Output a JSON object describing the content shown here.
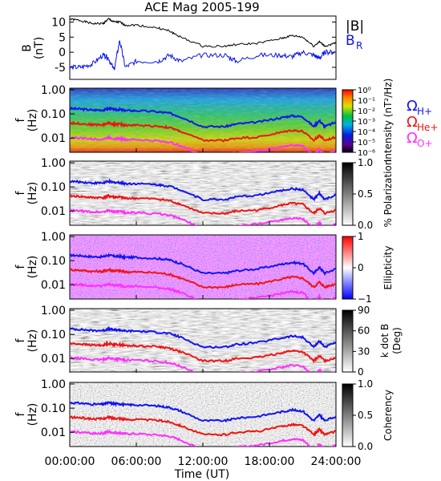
{
  "title": "ACE Mag 2005-199",
  "xlabel": "Time (UT)",
  "xticks": [
    "00:00:00",
    "06:00:00",
    "12:00:00",
    "18:00:00",
    "24:00:00"
  ],
  "colors": {
    "total": "#000000",
    "radial": "#0a14e6",
    "h_plus": "#1414f0",
    "he_plus": "#f01414",
    "o_plus": "#ff30ff"
  },
  "legend": {
    "b_total": "|B|",
    "b_r_main": "B",
    "b_r_sub": "R",
    "omega": "Ω",
    "h_plus": "H+",
    "he_plus": "He+",
    "o_plus": "O+"
  },
  "chart_data": [
    {
      "type": "line",
      "panel": "B",
      "ylabel": "B",
      "yunits": "(nT)",
      "ylim": [
        -9,
        12
      ],
      "yticks": [
        "10",
        "5",
        "0",
        "-5"
      ],
      "x_hours": [
        0,
        1,
        2,
        3,
        3.5,
        4,
        4.5,
        5,
        6,
        8,
        9,
        10,
        12,
        14,
        15,
        17,
        19,
        20,
        21,
        22,
        22.5,
        23,
        24
      ],
      "series": [
        {
          "name": "|B|",
          "values": [
            11,
            10.5,
            9.5,
            9.5,
            11,
            10,
            10,
            9,
            9,
            8,
            7,
            5,
            2,
            2,
            2.5,
            3,
            4.5,
            5.5,
            5,
            2,
            3.5,
            2,
            3
          ]
        },
        {
          "name": "B_R",
          "values": [
            -5,
            -5,
            -4,
            -1,
            -2,
            -6,
            4,
            -5,
            -3,
            -3,
            -1,
            -3,
            -1,
            -1,
            -3,
            -1,
            -1,
            -1.5,
            0,
            -1,
            -2,
            0,
            0
          ]
        }
      ]
    },
    {
      "type": "heatmap",
      "panel": "Power spectrum",
      "ylabel": "f",
      "yunits": "(Hz)",
      "yticks": [
        "1.00",
        "0.10",
        "0.01"
      ],
      "colorbar_label": "Intensity (nT²/Hz)",
      "colorbar_ticks": [
        "10⁰",
        "10⁻¹",
        "10⁻²",
        "10⁻³",
        "10⁻⁴",
        "10⁻⁵",
        "10⁻⁶"
      ]
    },
    {
      "type": "heatmap",
      "panel": "Polarization",
      "ylabel": "f",
      "yunits": "(Hz)",
      "yticks": [
        "1.00",
        "0.10",
        "0.01"
      ],
      "colorbar_label": "% Polarization",
      "colorbar_ticks": [
        "1.0",
        "0.5",
        "0.0"
      ]
    },
    {
      "type": "heatmap",
      "panel": "Ellipticity",
      "ylabel": "f",
      "yunits": "(Hz)",
      "yticks": [
        "1.00",
        "0.10",
        "0.01"
      ],
      "colorbar_label": "Ellipticity",
      "colorbar_ticks": [
        "1",
        "0",
        "−1"
      ]
    },
    {
      "type": "heatmap",
      "panel": "k dot B",
      "ylabel": "f",
      "yunits": "(Hz)",
      "yticks": [
        "1.00",
        "0.10",
        "0.01"
      ],
      "colorbar_label": "k dot B",
      "colorbar_sub": "(Deg)",
      "colorbar_ticks": [
        "90",
        "60",
        "30",
        "0"
      ]
    },
    {
      "type": "heatmap",
      "panel": "Coherency",
      "ylabel": "f",
      "yunits": "(Hz)",
      "yticks": [
        "1.00",
        "0.10",
        "0.01"
      ],
      "colorbar_label": "Coherency",
      "colorbar_ticks": [
        "1.0",
        "0.5",
        "0.0"
      ]
    },
    {
      "type": "line",
      "panel": "Gyrofrequency overlays (shown in all five spectral panels)",
      "ylim_hz": [
        0.003,
        1.0
      ],
      "x_hours": [
        0,
        1,
        2,
        3,
        3.5,
        4,
        4.5,
        5,
        6,
        8,
        9,
        10,
        12,
        14,
        15,
        17,
        19,
        20,
        21,
        22,
        22.5,
        23,
        24
      ],
      "series": [
        {
          "name": "Ω H+",
          "values": [
            0.168,
            0.16,
            0.145,
            0.145,
            0.168,
            0.152,
            0.152,
            0.137,
            0.137,
            0.122,
            0.107,
            0.076,
            0.03,
            0.03,
            0.038,
            0.046,
            0.069,
            0.084,
            0.076,
            0.03,
            0.053,
            0.03,
            0.046
          ]
        },
        {
          "name": "Ω He+",
          "values": [
            0.042,
            0.04,
            0.036,
            0.036,
            0.042,
            0.038,
            0.038,
            0.034,
            0.034,
            0.031,
            0.027,
            0.019,
            0.008,
            0.008,
            0.01,
            0.011,
            0.017,
            0.021,
            0.019,
            0.008,
            0.013,
            0.008,
            0.011
          ]
        },
        {
          "name": "Ω O+",
          "values": [
            0.0105,
            0.01,
            0.0091,
            0.0091,
            0.0105,
            0.0095,
            0.0095,
            0.0086,
            0.0086,
            0.0076,
            0.0067,
            0.0048,
            0.0019,
            0.0019,
            0.0024,
            0.0029,
            0.0043,
            0.0052,
            0.0048,
            0.0019,
            0.0033,
            0.0019,
            0.0029
          ]
        }
      ]
    }
  ]
}
